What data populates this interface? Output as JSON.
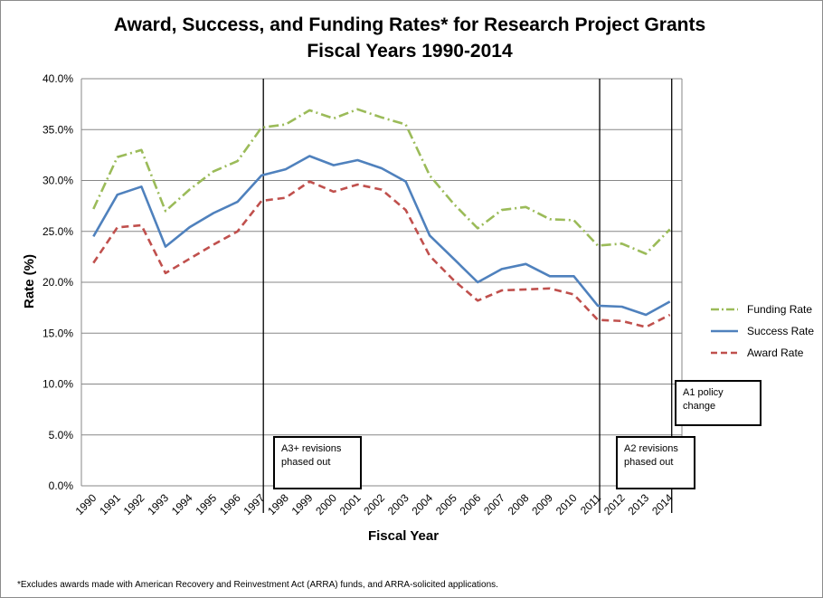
{
  "chart_data": {
    "type": "line",
    "title": "Award, Success, and Funding Rates* for Research Project Grants",
    "subtitle": "Fiscal Years 1990-2014",
    "xlabel": "Fiscal Year",
    "ylabel": "Rate (%)",
    "ylim": [
      0,
      40
    ],
    "y_ticks": [
      "0.0%",
      "5.0%",
      "10.0%",
      "15.0%",
      "20.0%",
      "25.0%",
      "30.0%",
      "35.0%",
      "40.0%"
    ],
    "grid": "horizontal",
    "legend_position": "right",
    "categories": [
      "1990",
      "1991",
      "1992",
      "1993",
      "1994",
      "1995",
      "1996",
      "1997",
      "1998",
      "1999",
      "2000",
      "2001",
      "2002",
      "2003",
      "2004",
      "2005",
      "2006",
      "2007",
      "2008",
      "2009",
      "2010",
      "2011",
      "2012",
      "2013",
      "2014"
    ],
    "series": [
      {
        "name": "Funding Rate",
        "color": "#9bbb59",
        "style": "dash-dot",
        "values": [
          27.2,
          32.3,
          33.0,
          27.0,
          29.1,
          30.9,
          31.9,
          35.2,
          35.5,
          36.9,
          36.1,
          37.0,
          36.2,
          35.5,
          30.5,
          27.7,
          25.3,
          27.1,
          27.4,
          26.2,
          26.1,
          23.6,
          23.8,
          22.8,
          25.2
        ]
      },
      {
        "name": "Success Rate",
        "color": "#4f81bd",
        "style": "solid",
        "values": [
          24.5,
          28.6,
          29.4,
          23.5,
          25.4,
          26.8,
          27.9,
          30.5,
          31.1,
          32.4,
          31.5,
          32.0,
          31.2,
          29.9,
          24.6,
          22.3,
          20.0,
          21.3,
          21.8,
          20.6,
          20.6,
          17.7,
          17.6,
          16.8,
          18.1
        ]
      },
      {
        "name": "Award Rate",
        "color": "#c0504d",
        "style": "dashed",
        "values": [
          21.9,
          25.4,
          25.6,
          20.9,
          22.3,
          23.7,
          25.0,
          28.0,
          28.3,
          29.9,
          28.9,
          29.6,
          29.1,
          27.1,
          22.6,
          20.2,
          18.2,
          19.2,
          19.3,
          19.4,
          18.8,
          16.3,
          16.2,
          15.6,
          16.8
        ]
      }
    ],
    "annotations": [
      {
        "text_lines": [
          "A3+ revisions",
          "phased out"
        ],
        "at_year": "1997"
      },
      {
        "text_lines": [
          "A2 revisions",
          "phased out"
        ],
        "at_year": "2011"
      },
      {
        "text_lines": [
          "A1 policy",
          "change"
        ],
        "at_year": "2014"
      }
    ],
    "footnote": "*Excludes awards made with American Recovery and Reinvestment Act  (ARRA) funds, and ARRA-solicited applications."
  }
}
